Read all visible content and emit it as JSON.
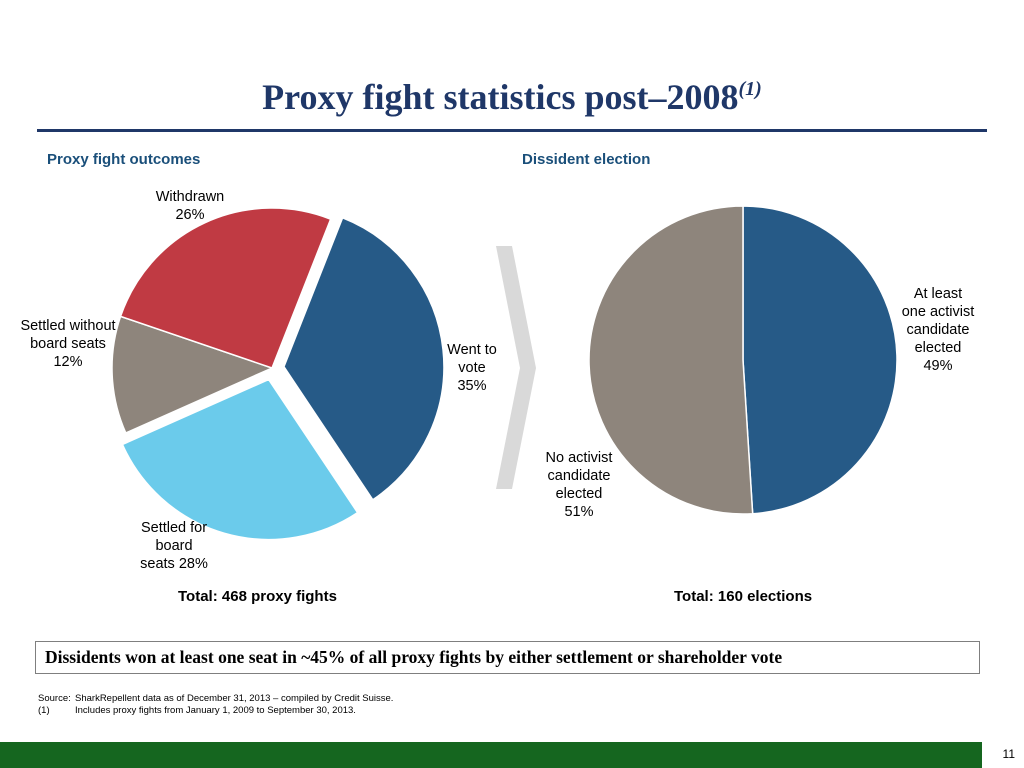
{
  "slide": {
    "title": "Proxy fight statistics post–2008",
    "title_footnote": "(1)",
    "callout": "Dissidents won at least one seat in ~45% of all proxy fights by either settlement or shareholder vote",
    "source_key": "Source:",
    "source_text": "SharkRepellent data as of December 31, 2013 – compiled by Credit Suisse.",
    "note_key": "(1)",
    "note_text": "Includes proxy fights from  January 1, 2009 to September 30, 2013.",
    "page_number": "11",
    "colors": {
      "title": "#1f3768",
      "heading": "#1a4f7a",
      "footer": "#15661f"
    }
  },
  "chart_data": [
    {
      "type": "pie",
      "title": "Proxy fight outcomes",
      "total_label": "Total: 468 proxy fights",
      "slices": [
        {
          "label": [
            "Went to",
            "vote",
            "35%"
          ],
          "value": 35,
          "color": "#265a87",
          "exploded": true
        },
        {
          "label": [
            "Settled  for",
            "board",
            "seats 28%"
          ],
          "value": 28,
          "color": "#6bcbeb",
          "exploded": true
        },
        {
          "label": [
            "Settled without",
            "board seats",
            "12%"
          ],
          "value": 12,
          "color": "#8e857c",
          "exploded": false
        },
        {
          "label": [
            "Withdrawn",
            "26%"
          ],
          "value": 26,
          "color": "#c03a43",
          "exploded": false
        }
      ]
    },
    {
      "type": "pie",
      "title": "Dissident election",
      "total_label": "Total: 160 elections",
      "slices": [
        {
          "label": [
            "At least",
            "one activist",
            "candidate",
            "elected",
            "49%"
          ],
          "value": 49,
          "color": "#265a87"
        },
        {
          "label": [
            "No activist",
            "candidate",
            "elected",
            "51%"
          ],
          "value": 51,
          "color": "#8e857c"
        }
      ]
    }
  ]
}
